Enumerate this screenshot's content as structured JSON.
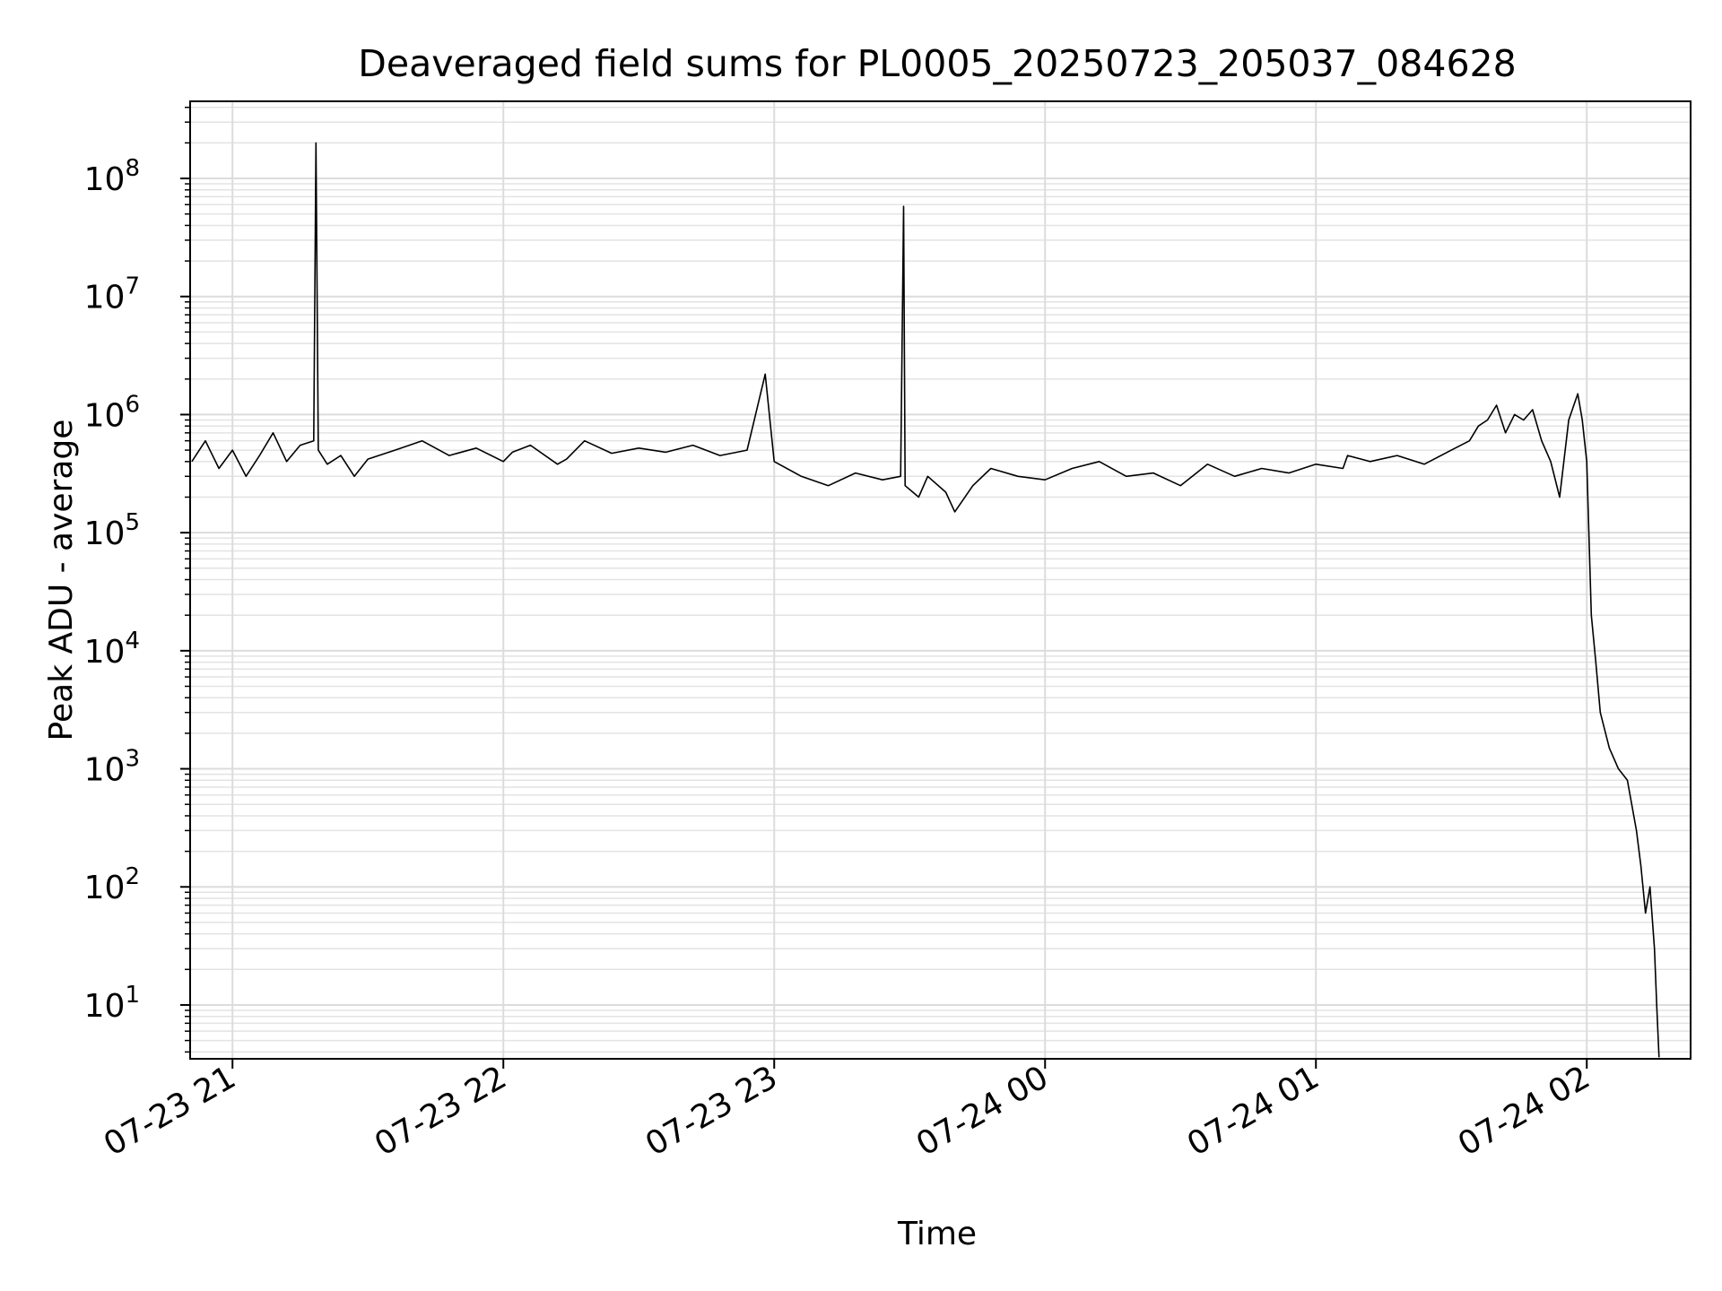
{
  "chart_data": {
    "type": "line",
    "title": "Deaveraged field sums for PL0005_20250723_205037_084628",
    "xlabel": "Time",
    "ylabel": "Peak ADU - average",
    "y_scale": "log",
    "ylim": [
      3.5,
      450000000
    ],
    "xlim": [
      "2025-07-23 20:50:37",
      "2025-07-24 02:23:00"
    ],
    "grid": true,
    "x_ticks": [
      {
        "label": "07-23 21",
        "value": "2025-07-23 21:00"
      },
      {
        "label": "07-23 22",
        "value": "2025-07-23 22:00"
      },
      {
        "label": "07-23 23",
        "value": "2025-07-23 23:00"
      },
      {
        "label": "07-24 00",
        "value": "2025-07-24 00:00"
      },
      {
        "label": "07-24 01",
        "value": "2025-07-24 01:00"
      },
      {
        "label": "07-24 02",
        "value": "2025-07-24 02:00"
      }
    ],
    "y_ticks": [
      {
        "exp": 1,
        "value": 10
      },
      {
        "exp": 2,
        "value": 100
      },
      {
        "exp": 3,
        "value": 1000
      },
      {
        "exp": 4,
        "value": 10000
      },
      {
        "exp": 5,
        "value": 100000
      },
      {
        "exp": 6,
        "value": 1000000
      },
      {
        "exp": 7,
        "value": 10000000
      },
      {
        "exp": 8,
        "value": 100000000
      }
    ],
    "series": [
      {
        "color": "#000000",
        "x": [
          "2025-07-23 20:51",
          "2025-07-23 20:54",
          "2025-07-23 20:57",
          "2025-07-23 21:00",
          "2025-07-23 21:03",
          "2025-07-23 21:06",
          "2025-07-23 21:09",
          "2025-07-23 21:12",
          "2025-07-23 21:15",
          "2025-07-23 21:18",
          "2025-07-23 21:18:30",
          "2025-07-23 21:19",
          "2025-07-23 21:21",
          "2025-07-23 21:24",
          "2025-07-23 21:27",
          "2025-07-23 21:30",
          "2025-07-23 21:36",
          "2025-07-23 21:42",
          "2025-07-23 21:48",
          "2025-07-23 21:54",
          "2025-07-23 22:00",
          "2025-07-23 22:02",
          "2025-07-23 22:06",
          "2025-07-23 22:12",
          "2025-07-23 22:14",
          "2025-07-23 22:18",
          "2025-07-23 22:24",
          "2025-07-23 22:30",
          "2025-07-23 22:36",
          "2025-07-23 22:42",
          "2025-07-23 22:48",
          "2025-07-23 22:54",
          "2025-07-23 22:58",
          "2025-07-23 23:00",
          "2025-07-23 23:06",
          "2025-07-23 23:12",
          "2025-07-23 23:18",
          "2025-07-23 23:24",
          "2025-07-23 23:28",
          "2025-07-23 23:28:40",
          "2025-07-23 23:29",
          "2025-07-23 23:32",
          "2025-07-23 23:34",
          "2025-07-23 23:38",
          "2025-07-23 23:40",
          "2025-07-23 23:44",
          "2025-07-23 23:48",
          "2025-07-23 23:54",
          "2025-07-24 00:00",
          "2025-07-24 00:06",
          "2025-07-24 00:12",
          "2025-07-24 00:18",
          "2025-07-24 00:24",
          "2025-07-24 00:30",
          "2025-07-24 00:36",
          "2025-07-24 00:42",
          "2025-07-24 00:48",
          "2025-07-24 00:54",
          "2025-07-24 01:00",
          "2025-07-24 01:06",
          "2025-07-24 01:07",
          "2025-07-24 01:12",
          "2025-07-24 01:18",
          "2025-07-24 01:24",
          "2025-07-24 01:30",
          "2025-07-24 01:34",
          "2025-07-24 01:36",
          "2025-07-24 01:38",
          "2025-07-24 01:40",
          "2025-07-24 01:42",
          "2025-07-24 01:44",
          "2025-07-24 01:46",
          "2025-07-24 01:48",
          "2025-07-24 01:50",
          "2025-07-24 01:52",
          "2025-07-24 01:54",
          "2025-07-24 01:56",
          "2025-07-24 01:58",
          "2025-07-24 01:59",
          "2025-07-24 02:00",
          "2025-07-24 02:01",
          "2025-07-24 02:02",
          "2025-07-24 02:03",
          "2025-07-24 02:05",
          "2025-07-24 02:07",
          "2025-07-24 02:09",
          "2025-07-24 02:11",
          "2025-07-24 02:12",
          "2025-07-24 02:13",
          "2025-07-24 02:14",
          "2025-07-24 02:15",
          "2025-07-24 02:15:30",
          "2025-07-24 02:16"
        ],
        "y": [
          400000,
          600000,
          350000,
          500000,
          300000,
          450000,
          700000,
          400000,
          550000,
          600000,
          200000000,
          500000,
          380000,
          450000,
          300000,
          420000,
          500000,
          600000,
          450000,
          520000,
          400000,
          480000,
          550000,
          380000,
          420000,
          600000,
          470000,
          520000,
          480000,
          550000,
          450000,
          500000,
          2200000,
          400000,
          300000,
          250000,
          320000,
          280000,
          300000,
          58000000,
          250000,
          200000,
          300000,
          220000,
          150000,
          250000,
          350000,
          300000,
          280000,
          350000,
          400000,
          300000,
          320000,
          250000,
          380000,
          300000,
          350000,
          320000,
          380000,
          350000,
          450000,
          400000,
          450000,
          380000,
          500000,
          600000,
          800000,
          900000,
          1200000,
          700000,
          1000000,
          900000,
          1100000,
          600000,
          400000,
          200000,
          900000,
          1500000,
          900000,
          400000,
          20000,
          8000,
          3000,
          1500,
          1000,
          800,
          300,
          150,
          60,
          100,
          30,
          10,
          3.6
        ]
      }
    ]
  }
}
